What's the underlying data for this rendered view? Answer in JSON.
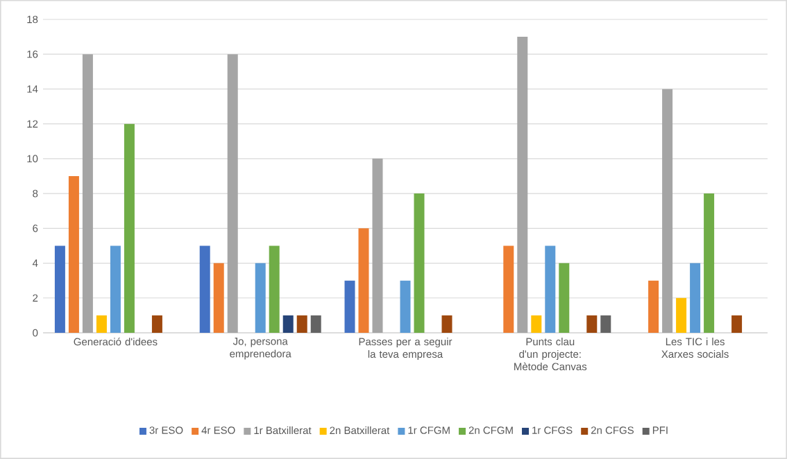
{
  "chart_data": {
    "type": "bar",
    "categories": [
      "Generació d'idees",
      "Jo, persona emprenedora",
      "Passes per a seguir la teva empresa",
      "Punts clau d'un projecte: Mètode Canvas",
      "Les TIC i les Xarxes socials"
    ],
    "series": [
      {
        "name": "3r ESO",
        "color": "#4472c4",
        "values": [
          5,
          5,
          3,
          0,
          0
        ]
      },
      {
        "name": "4r ESO",
        "color": "#ed7d31",
        "values": [
          9,
          4,
          6,
          5,
          3
        ]
      },
      {
        "name": "1r Batxillerat",
        "color": "#a5a5a5",
        "values": [
          16,
          16,
          10,
          17,
          14
        ]
      },
      {
        "name": "2n Batxillerat",
        "color": "#ffc000",
        "values": [
          1,
          0,
          0,
          1,
          2
        ]
      },
      {
        "name": "1r CFGM",
        "color": "#5b9bd5",
        "values": [
          5,
          4,
          3,
          5,
          4
        ]
      },
      {
        "name": "2n CFGM",
        "color": "#70ad47",
        "values": [
          12,
          5,
          8,
          4,
          8
        ]
      },
      {
        "name": "1r CFGS",
        "color": "#264478",
        "values": [
          0,
          1,
          0,
          0,
          0
        ]
      },
      {
        "name": "2n CFGS",
        "color": "#9e480e",
        "values": [
          1,
          1,
          1,
          1,
          1
        ]
      },
      {
        "name": "PFI",
        "color": "#636363",
        "values": [
          0,
          1,
          0,
          1,
          0
        ]
      }
    ],
    "ylim": [
      0,
      18
    ],
    "yticks": [
      0,
      2,
      4,
      6,
      8,
      10,
      12,
      14,
      16,
      18
    ],
    "grid": "y",
    "legend": "bottom"
  }
}
